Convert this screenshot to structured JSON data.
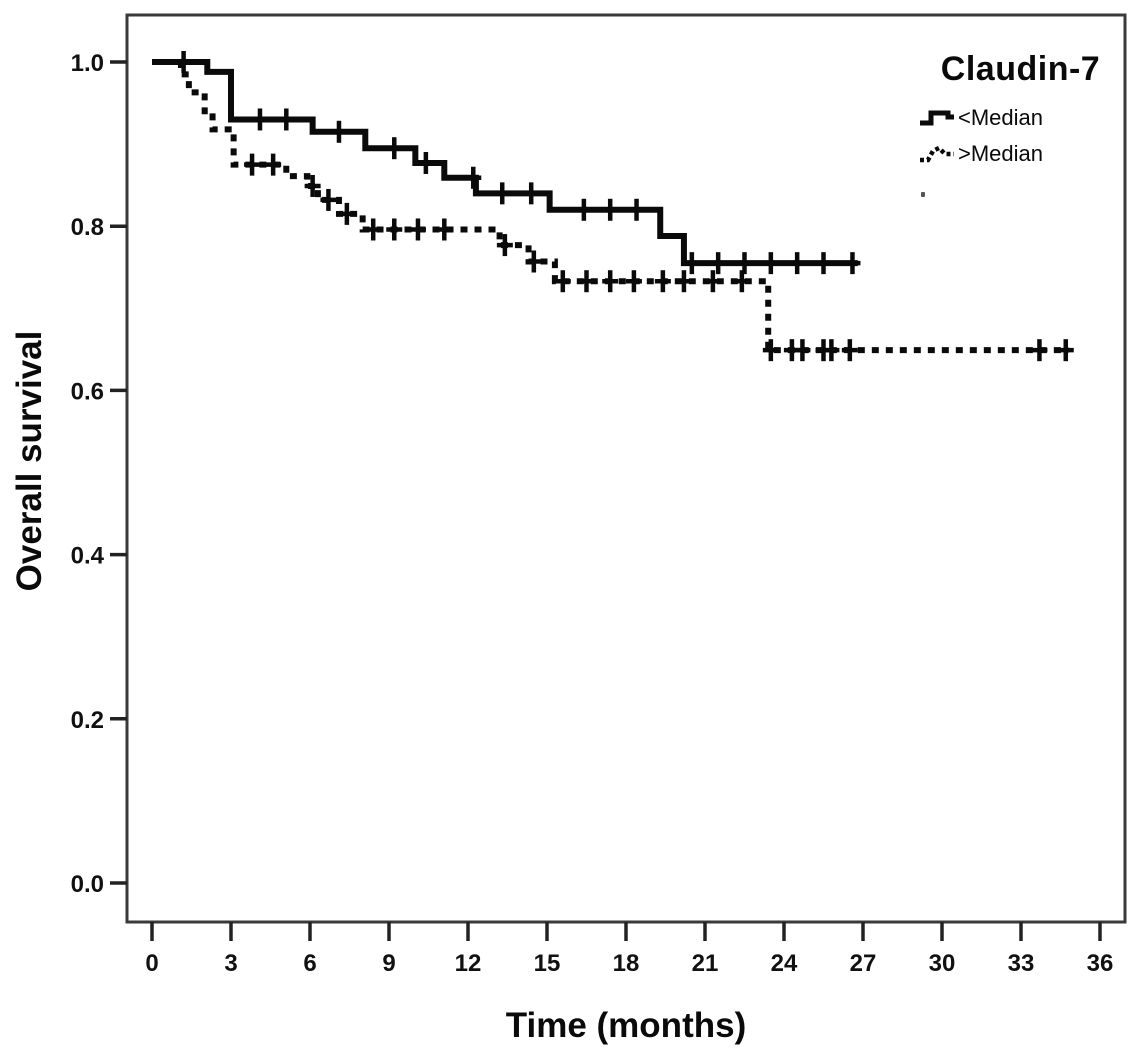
{
  "chart_data": {
    "type": "line",
    "subtype": "kaplan-meier-step",
    "title": "Claudin-7",
    "xlabel": "Time (months)",
    "ylabel": "Overall survival",
    "xlim": [
      0,
      36
    ],
    "ylim": [
      0.0,
      1.0
    ],
    "grid": "off",
    "legend_position": "top-right-inside",
    "x_ticks": [
      0,
      3,
      6,
      9,
      12,
      15,
      18,
      21,
      24,
      27,
      30,
      33,
      36
    ],
    "y_ticks": [
      {
        "value": 1.0,
        "label": "1.0"
      },
      {
        "value": 0.8,
        "label": "0.8"
      },
      {
        "value": 0.6,
        "label": "0.6"
      },
      {
        "value": 0.4,
        "label": "0.4"
      },
      {
        "value": 0.2,
        "label": "0.2"
      },
      {
        "value": 0.0,
        "label": "0.0"
      }
    ],
    "colors": {
      "curves": "#0a0a0a",
      "frame": "#3a3a3a",
      "text": "#111111",
      "background": "#ffffff"
    },
    "series": [
      {
        "name": "<Median",
        "line_style": "solid",
        "color": "#0a0a0a",
        "steps": [
          {
            "t": 0.0,
            "s": 1.0
          },
          {
            "t": 2.1,
            "s": 0.988
          },
          {
            "t": 3.0,
            "s": 0.93
          },
          {
            "t": 6.1,
            "s": 0.915
          },
          {
            "t": 8.1,
            "s": 0.895
          },
          {
            "t": 10.0,
            "s": 0.877
          },
          {
            "t": 11.1,
            "s": 0.859
          },
          {
            "t": 12.3,
            "s": 0.84
          },
          {
            "t": 15.1,
            "s": 0.82
          },
          {
            "t": 19.3,
            "s": 0.788
          },
          {
            "t": 20.2,
            "s": 0.755
          },
          {
            "t": 26.8,
            "s": 0.755
          }
        ],
        "censor_times": [
          1.2,
          4.1,
          5.1,
          7.1,
          9.2,
          10.4,
          12.2,
          13.3,
          14.4,
          16.4,
          17.4,
          18.4,
          20.5,
          21.5,
          22.5,
          23.5,
          24.5,
          25.5,
          26.6
        ]
      },
      {
        "name": ">Median",
        "line_style": "dashed",
        "color": "#0a0a0a",
        "steps": [
          {
            "t": 0.0,
            "s": 1.0
          },
          {
            "t": 1.1,
            "s": 0.985
          },
          {
            "t": 1.4,
            "s": 0.963
          },
          {
            "t": 2.0,
            "s": 0.94
          },
          {
            "t": 2.3,
            "s": 0.918
          },
          {
            "t": 3.1,
            "s": 0.875
          },
          {
            "t": 5.1,
            "s": 0.861
          },
          {
            "t": 5.9,
            "s": 0.849
          },
          {
            "t": 6.3,
            "s": 0.832
          },
          {
            "t": 7.1,
            "s": 0.815
          },
          {
            "t": 8.0,
            "s": 0.796
          },
          {
            "t": 13.2,
            "s": 0.777
          },
          {
            "t": 14.3,
            "s": 0.757
          },
          {
            "t": 15.3,
            "s": 0.733
          },
          {
            "t": 23.4,
            "s": 0.649
          },
          {
            "t": 34.8,
            "s": 0.649
          }
        ],
        "censor_times": [
          3.8,
          4.6,
          6.1,
          6.7,
          7.4,
          8.4,
          9.2,
          10.1,
          11.1,
          13.4,
          14.5,
          15.6,
          16.5,
          17.4,
          18.3,
          19.4,
          20.2,
          21.3,
          22.4,
          23.5,
          24.3,
          24.7,
          25.5,
          25.8,
          26.5,
          33.7,
          34.7
        ]
      }
    ]
  }
}
